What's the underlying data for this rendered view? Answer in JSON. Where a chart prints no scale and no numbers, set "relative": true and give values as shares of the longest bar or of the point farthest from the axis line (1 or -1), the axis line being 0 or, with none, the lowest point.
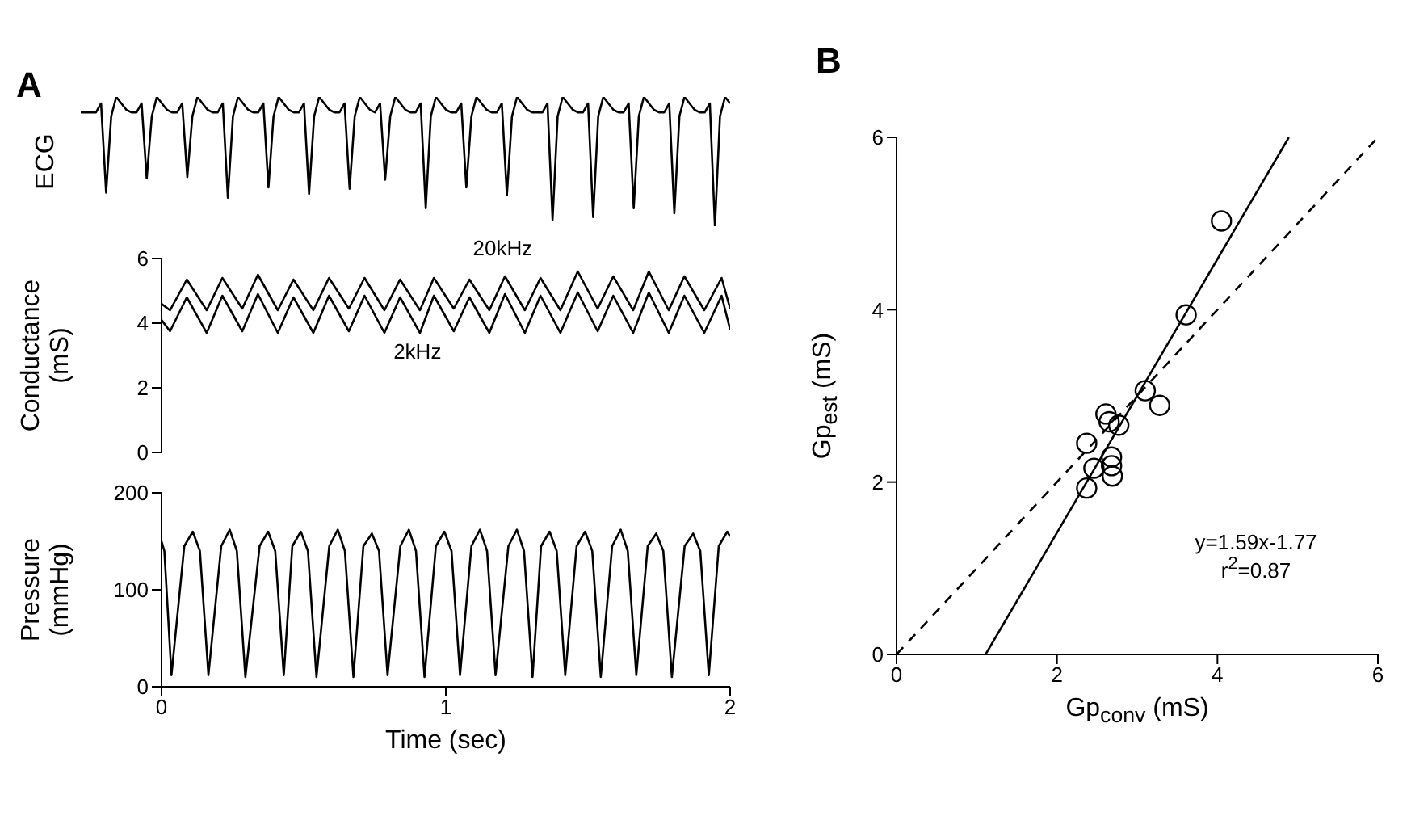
{
  "chart_data": [
    {
      "type": "line",
      "title": "A",
      "ylabel": "ECG",
      "relative": true,
      "tick_labels": false,
      "categories": [
        null,
        null,
        null,
        null,
        null,
        null,
        null,
        null,
        null,
        null,
        null,
        null,
        null,
        null,
        null,
        null,
        null,
        null,
        null,
        null,
        null,
        null,
        null,
        null,
        null,
        null,
        null,
        null,
        null,
        null,
        null,
        null,
        null,
        null,
        null,
        null,
        null,
        null,
        null,
        null,
        null,
        null,
        null,
        null,
        null,
        null,
        null,
        null,
        null,
        null,
        null,
        null,
        null,
        null,
        null,
        null,
        null,
        null,
        null,
        null,
        null,
        null,
        null,
        null,
        null,
        null,
        null,
        null,
        null,
        null,
        null,
        null,
        null,
        null,
        null,
        null,
        null,
        null,
        null,
        null,
        null,
        null,
        null,
        null,
        null,
        null,
        null,
        null,
        null,
        null,
        null,
        null,
        null,
        null,
        null,
        null,
        null,
        null,
        null,
        null,
        null,
        null,
        null,
        null,
        null,
        null,
        null,
        null,
        null,
        null,
        null,
        null,
        null,
        null,
        null,
        null,
        null,
        null,
        null,
        null,
        null,
        null,
        null,
        null,
        null,
        null,
        null,
        null,
        null
      ],
      "series": [
        {
          "color": "#000000",
          "values": [
            0.88,
            0.88,
            0.88,
            0.88,
            0.95,
            0.26,
            0.85,
            1,
            0.95,
            0.9,
            0.88,
            0.88,
            0.95,
            0.37,
            0.85,
            1,
            0.95,
            0.9,
            0.88,
            0.88,
            0.95,
            0.38,
            0.85,
            1,
            0.95,
            0.9,
            0.88,
            0.88,
            0.95,
            0.22,
            0.85,
            1,
            0.95,
            0.9,
            0.88,
            0.88,
            0.95,
            0.3,
            0.85,
            1,
            0.95,
            0.9,
            0.88,
            0.88,
            0.95,
            0.25,
            0.85,
            1,
            0.95,
            0.9,
            0.88,
            0.88,
            0.95,
            0.29,
            0.85,
            1,
            0.95,
            0.9,
            0.88,
            0.95,
            0.36,
            0.85,
            1,
            0.95,
            0.9,
            0.88,
            0.88,
            0.95,
            0.14,
            0.85,
            1,
            0.95,
            0.9,
            0.88,
            0.88,
            0.95,
            0.3,
            0.85,
            1,
            0.95,
            0.9,
            0.88,
            0.88,
            0.95,
            0.24,
            0.85,
            1,
            0.95,
            0.9,
            0.88,
            0.88,
            0.88,
            0.95,
            0.05,
            0.85,
            1,
            0.95,
            0.9,
            0.88,
            0.88,
            0.95,
            0.07,
            0.85,
            1,
            0.95,
            0.9,
            0.88,
            0.88,
            0.95,
            0.14,
            0.85,
            1,
            0.95,
            0.9,
            0.88,
            0.88,
            0.95,
            0.1,
            0.85,
            1,
            0.95,
            0.9,
            0.88,
            0.88,
            0.95,
            0,
            0.85,
            1,
            0.95
          ]
        }
      ]
    },
    {
      "type": "line",
      "ylabel": "Conductance (mS)",
      "tick_labels": "y",
      "xlim": [
        0,
        2
      ],
      "ylim": [
        0,
        6
      ],
      "yticks": [
        0,
        2,
        4,
        6
      ],
      "series": [
        {
          "name": "20kHz",
          "color": "#000000",
          "x": [
            0,
            0.03,
            0.089,
            0.159,
            0.214,
            0.284,
            0.339,
            0.409,
            0.464,
            0.534,
            0.589,
            0.659,
            0.714,
            0.784,
            0.839,
            0.909,
            0.958,
            1.028,
            1.083,
            1.153,
            1.208,
            1.278,
            1.333,
            1.403,
            1.464,
            1.534,
            1.589,
            1.659,
            1.714,
            1.784,
            1.839,
            1.909,
            1.97,
            2.0
          ],
          "values": [
            4.6,
            4.4,
            5.35,
            4.4,
            5.4,
            4.45,
            5.5,
            4.4,
            5.35,
            4.4,
            5.4,
            4.45,
            5.4,
            4.4,
            5.35,
            4.4,
            5.4,
            4.45,
            5.35,
            4.4,
            5.45,
            4.4,
            5.4,
            4.4,
            5.6,
            4.45,
            5.45,
            4.4,
            5.6,
            4.4,
            5.45,
            4.4,
            5.4,
            4.45
          ]
        },
        {
          "name": "2kHz",
          "color": "#000000",
          "x": [
            0,
            0.03,
            0.089,
            0.159,
            0.214,
            0.284,
            0.339,
            0.409,
            0.464,
            0.534,
            0.589,
            0.659,
            0.714,
            0.784,
            0.839,
            0.909,
            0.958,
            1.028,
            1.083,
            1.153,
            1.208,
            1.278,
            1.333,
            1.403,
            1.464,
            1.534,
            1.589,
            1.659,
            1.714,
            1.784,
            1.839,
            1.909,
            1.97,
            2.0
          ],
          "values": [
            4.1,
            3.75,
            4.8,
            3.7,
            4.85,
            3.75,
            4.9,
            3.7,
            4.8,
            3.7,
            4.85,
            3.75,
            4.85,
            3.7,
            4.8,
            3.7,
            4.85,
            3.75,
            4.8,
            3.7,
            4.9,
            3.7,
            4.85,
            3.7,
            4.95,
            3.75,
            4.85,
            3.7,
            4.95,
            3.7,
            4.85,
            3.7,
            4.85,
            3.8
          ]
        }
      ]
    },
    {
      "type": "line",
      "xlabel": "Time (sec)",
      "ylabel": "Pressure (mmHg)",
      "xlim": [
        0,
        2
      ],
      "xticks": [
        0,
        1,
        2
      ],
      "ylim": [
        0,
        200
      ],
      "yticks": [
        0,
        100,
        200
      ],
      "series": [
        {
          "color": "#000000",
          "x": [
            0,
            0.01,
            0.035,
            0.08,
            0.11,
            0.135,
            0.165,
            0.21,
            0.24,
            0.265,
            0.295,
            0.345,
            0.375,
            0.4,
            0.43,
            0.46,
            0.49,
            0.515,
            0.545,
            0.59,
            0.62,
            0.645,
            0.675,
            0.71,
            0.74,
            0.765,
            0.795,
            0.84,
            0.87,
            0.895,
            0.925,
            0.965,
            0.995,
            1.02,
            1.05,
            1.09,
            1.12,
            1.145,
            1.175,
            1.22,
            1.25,
            1.275,
            1.305,
            1.335,
            1.365,
            1.39,
            1.42,
            1.46,
            1.49,
            1.515,
            1.545,
            1.585,
            1.615,
            1.64,
            1.67,
            1.71,
            1.74,
            1.765,
            1.795,
            1.84,
            1.87,
            1.895,
            1.925,
            1.96,
            1.99,
            2.0
          ],
          "values": [
            150,
            140,
            12,
            145,
            160,
            140,
            12,
            145,
            162,
            140,
            10,
            145,
            160,
            140,
            12,
            145,
            160,
            140,
            10,
            145,
            162,
            140,
            10,
            145,
            158,
            140,
            12,
            145,
            162,
            140,
            10,
            145,
            160,
            140,
            12,
            145,
            162,
            140,
            12,
            145,
            162,
            140,
            10,
            145,
            160,
            140,
            12,
            145,
            160,
            140,
            10,
            145,
            162,
            140,
            12,
            145,
            158,
            140,
            10,
            145,
            158,
            140,
            12,
            145,
            160,
            155
          ]
        }
      ]
    },
    {
      "type": "scatter",
      "title": "B",
      "xlabel": "Gp$_{conv}$ (mS)",
      "ylabel": "Gp$_{est}$ (mS)",
      "xlim": [
        0,
        6
      ],
      "xticks": [
        0,
        2,
        4,
        6
      ],
      "ylim": [
        0,
        6
      ],
      "yticks": [
        0,
        2,
        4,
        6
      ],
      "annotations": [
        "y=1.59x-1.77",
        "r$^{2}$=0.87"
      ],
      "series": [
        {
          "color": "#000000",
          "marker": "circle",
          "x": [
            4.05,
            3.61,
            3.1,
            3.28,
            2.61,
            2.65,
            2.77,
            2.37,
            2.68,
            2.68,
            2.46,
            2.69,
            2.37
          ],
          "values": [
            5.03,
            3.94,
            3.06,
            2.89,
            2.79,
            2.7,
            2.66,
            2.45,
            2.29,
            2.19,
            2.16,
            2.07,
            1.93
          ]
        },
        {
          "type": "line",
          "color": "#000000",
          "line_style": "solid",
          "x": [
            1.11,
            4.89
          ],
          "values": [
            0,
            6
          ]
        },
        {
          "type": "line",
          "color": "#000000",
          "line_style": "dashed",
          "x": [
            0,
            6
          ],
          "values": [
            0,
            6
          ]
        }
      ]
    }
  ]
}
